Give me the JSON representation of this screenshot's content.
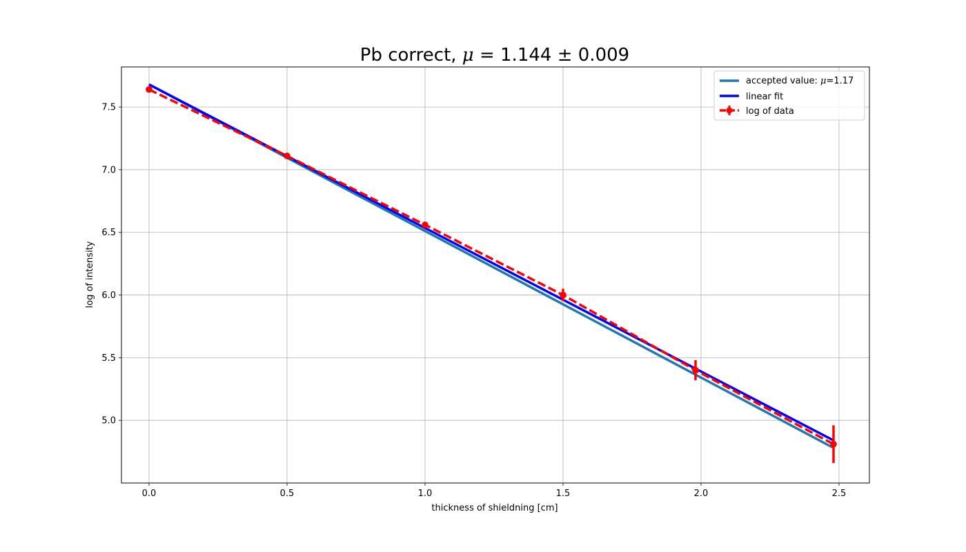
{
  "chart_data": {
    "type": "line",
    "title": {
      "prefix": "Pb correct, ",
      "symbol": "μ",
      "relation": " = 1.144 ± 0.009"
    },
    "xlabel": "thickness of shieldning [cm]",
    "ylabel": "log of intensity",
    "xlim": [
      -0.1,
      2.61
    ],
    "ylim": [
      4.5,
      7.82
    ],
    "grid": true,
    "legend_position": "top-right",
    "x_ticks": [
      0.0,
      0.5,
      1.0,
      1.5,
      2.0,
      2.5
    ],
    "x_tick_labels": [
      "0.0",
      "0.5",
      "1.0",
      "1.5",
      "2.0",
      "2.5"
    ],
    "y_ticks": [
      5.0,
      5.5,
      6.0,
      6.5,
      7.0,
      7.5
    ],
    "y_tick_labels": [
      "5.0",
      "5.5",
      "6.0",
      "6.5",
      "7.0",
      "7.5"
    ],
    "series": [
      {
        "legend_label": "accepted value: ",
        "legend_symbol": "μ",
        "legend_suffix": "=1.17",
        "style": "solid",
        "color": "#1f77b4",
        "x": [
          0.0,
          2.48
        ],
        "y": [
          7.68,
          4.78
        ]
      },
      {
        "name": "linear fit",
        "style": "solid",
        "color": "#0000ff",
        "x": [
          0.0,
          2.48
        ],
        "y": [
          7.68,
          4.84
        ]
      },
      {
        "name": "log of data",
        "style": "dashed-markers-errorbars",
        "color": "#ff0000",
        "x": [
          0.0,
          0.5,
          1.0,
          1.5,
          1.98,
          2.48
        ],
        "y": [
          7.64,
          7.11,
          6.56,
          6.0,
          5.4,
          4.81
        ],
        "yerr": [
          0.01,
          0.015,
          0.02,
          0.05,
          0.08,
          0.15
        ]
      }
    ]
  }
}
